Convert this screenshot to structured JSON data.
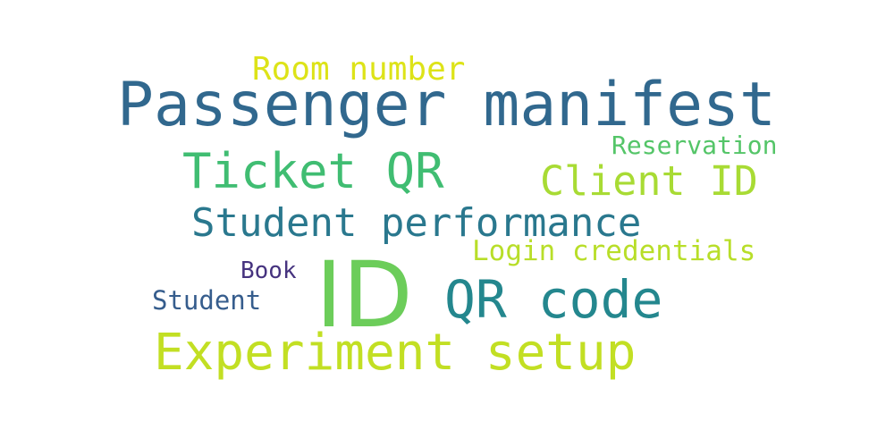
{
  "words": {
    "room_number": {
      "text": "Room number",
      "color": "#dde318"
    },
    "passenger_manifest": {
      "text": "Passenger manifest",
      "color": "#31688e"
    },
    "reservation": {
      "text": "Reservation",
      "color": "#54c568"
    },
    "ticket_qr": {
      "text": "Ticket QR",
      "color": "#40bd72"
    },
    "client_id": {
      "text": "Client ID",
      "color": "#a8db34"
    },
    "student_performance": {
      "text": "Student performance",
      "color": "#2a788e"
    },
    "login_credentials": {
      "text": "Login credentials",
      "color": "#b8de29"
    },
    "book": {
      "text": "Book",
      "color": "#46337f"
    },
    "id": {
      "text": "ID",
      "color": "#6ccd5a"
    },
    "qr_code": {
      "text": "QR code",
      "color": "#24878e"
    },
    "student": {
      "text": "Student",
      "color": "#365d8d"
    },
    "experiment_setup": {
      "text": "Experiment setup",
      "color": "#c2df23"
    }
  }
}
